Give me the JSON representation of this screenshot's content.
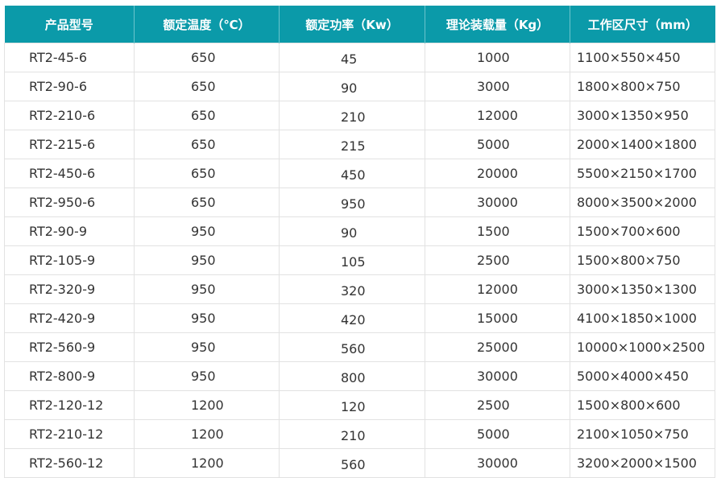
{
  "header_color": "#0b9aa9",
  "columns": [
    "产品型号",
    "额定温度（℃）",
    "额定功率（Kw）",
    "理论装载量（Kg）",
    "工作区尺寸（mm）"
  ],
  "rows": [
    [
      "RT2-45-6",
      "650",
      "45",
      "1000",
      "1100×550×450"
    ],
    [
      "RT2-90-6",
      "650",
      "90",
      "3000",
      "1800×800×750"
    ],
    [
      "RT2-210-6",
      "650",
      "210",
      "12000",
      "3000×1350×950"
    ],
    [
      "RT2-215-6",
      "650",
      "215",
      "5000",
      "2000×1400×1800"
    ],
    [
      "RT2-450-6",
      "650",
      "450",
      "20000",
      "5500×2150×1700"
    ],
    [
      "RT2-950-6",
      "650",
      "950",
      "30000",
      "8000×3500×2000"
    ],
    [
      "RT2-90-9",
      "950",
      "90",
      "1500",
      "1500×700×600"
    ],
    [
      "RT2-105-9",
      "950",
      "105",
      "2500",
      "1500×800×750"
    ],
    [
      "RT2-320-9",
      "950",
      "320",
      "12000",
      "3000×1350×1300"
    ],
    [
      "RT2-420-9",
      "950",
      "420",
      "15000",
      "4100×1850×1000"
    ],
    [
      "RT2-560-9",
      "950",
      "560",
      "25000",
      "10000×1000×2500"
    ],
    [
      "RT2-800-9",
      "950",
      "800",
      "30000",
      "5000×4000×450"
    ],
    [
      "RT2-120-12",
      "1200",
      "120",
      "2500",
      "1500×800×600"
    ],
    [
      "RT2-210-12",
      "1200",
      "210",
      "5000",
      "2100×1050×750"
    ],
    [
      "RT2-560-12",
      "1200",
      "560",
      "30000",
      "3200×2000×1500"
    ]
  ]
}
